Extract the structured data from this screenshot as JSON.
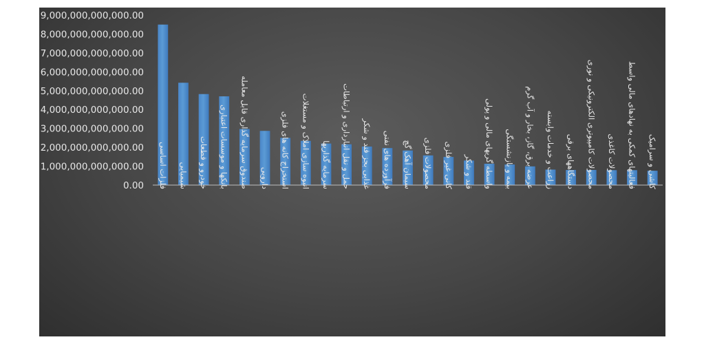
{
  "chart_data": {
    "type": "bar",
    "title": "",
    "xlabel": "",
    "ylabel": "",
    "ylim": [
      0,
      9000000000000
    ],
    "yticks": [
      0,
      1000000000000,
      2000000000000,
      3000000000000,
      4000000000000,
      5000000000000,
      6000000000000,
      7000000000000,
      8000000000000,
      9000000000000
    ],
    "ytick_labels": [
      "0.00",
      "1,000,000,000,000.00",
      "2,000,000,000,000.00",
      "3,000,000,000,000.00",
      "4,000,000,000,000.00",
      "5,000,000,000,000.00",
      "6,000,000,000,000.00",
      "7,000,000,000,000.00",
      "8,000,000,000,000.00",
      "9,000,000,000,000.00"
    ],
    "grid": false,
    "legend": "none",
    "bar_color": "#5b9bd5",
    "categories": [
      "فلزات اساسی",
      "شیمیایی",
      "خودرو و قطعات",
      "بانکها و موسسات اعتباری",
      "صندوق سرمایه گذاری قابل معامله",
      "دارویی",
      "استخراج کانه های فلزی",
      "انبوه سازی املاک و مستغلات",
      "سرمایه گذاریها",
      "حمل و نقل انبارداری و ارتباطات",
      "غذایی بجز قند و شکر",
      "فرآورده های نفتی",
      "سیمان آهک گچ",
      "محصولات فلزی",
      "کانی غیر فلزی",
      "قند و شکر",
      "واسطه گریهای مالی و پولی",
      "بیمه و بازنشستگی",
      "عرضه برق، گاز، بخار و آب گرم",
      "زراعت و خدمات وابسته",
      "دستگاههای برقی",
      "محصولات کامپیوتری الکترونیکی و نوری",
      "محصولات کاغذی",
      "فعالیتهای کمکی به نهادهای مالی واسط",
      "کاشی و سرامیک"
    ],
    "values": [
      8500000000000,
      5420000000000,
      4820000000000,
      4700000000000,
      2970000000000,
      2870000000000,
      2500000000000,
      2340000000000,
      2200000000000,
      2160000000000,
      2040000000000,
      1960000000000,
      1830000000000,
      1570000000000,
      1490000000000,
      1300000000000,
      1130000000000,
      1090000000000,
      990000000000,
      820000000000,
      800000000000,
      800000000000,
      790000000000,
      790000000000,
      760000000000
    ]
  }
}
